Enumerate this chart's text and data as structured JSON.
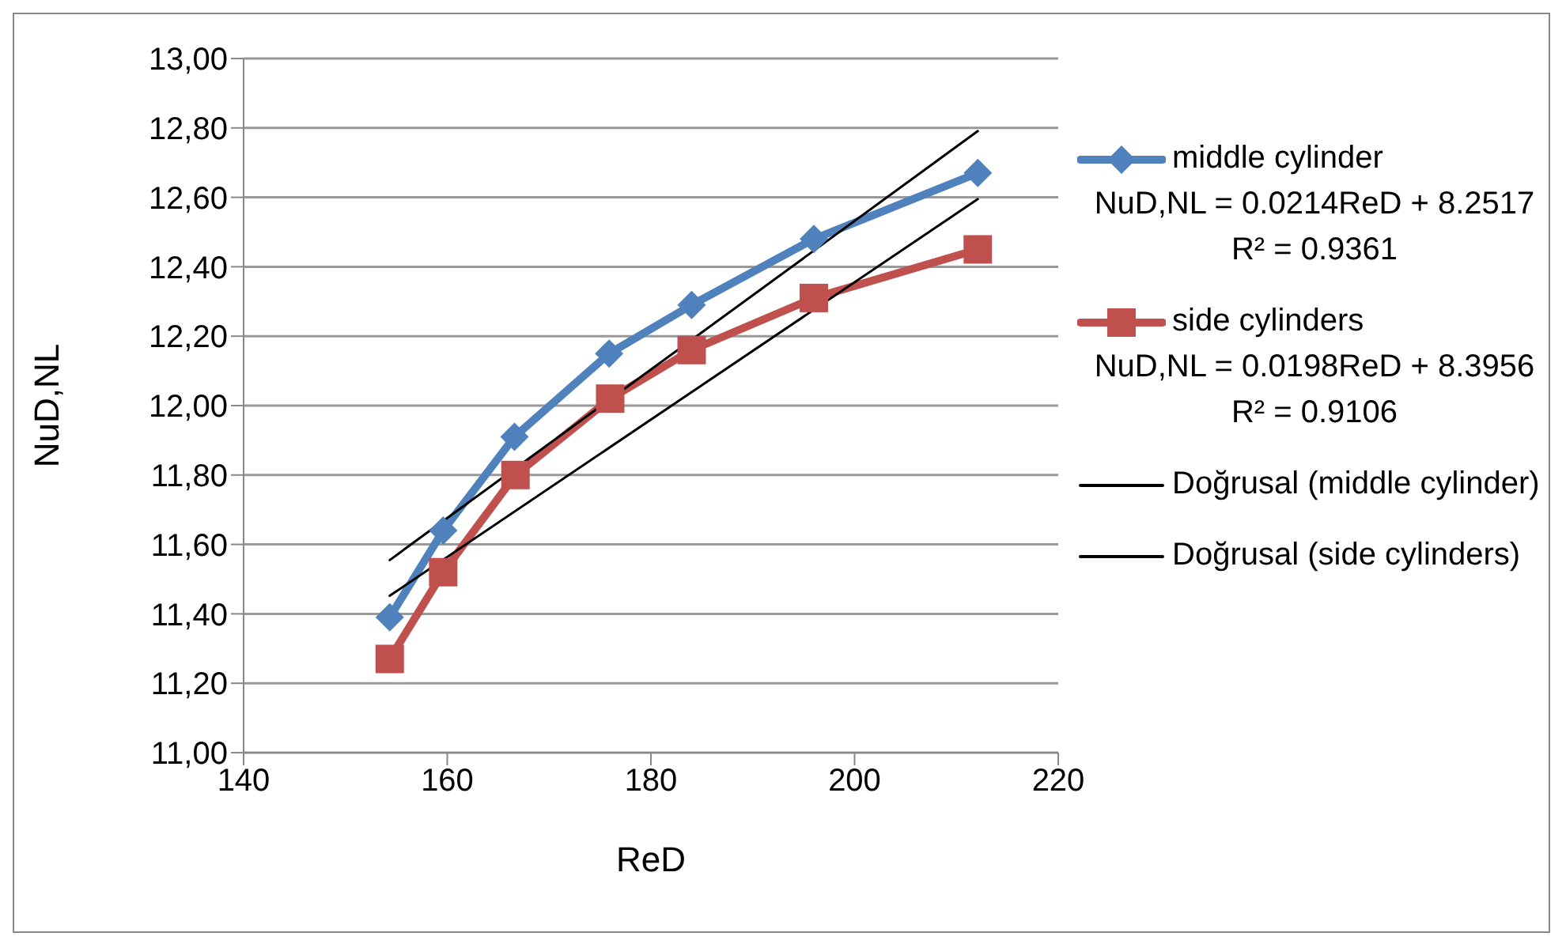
{
  "chart_data": {
    "type": "line",
    "xlabel": "ReD",
    "ylabel": "NuD,NL",
    "xlim": [
      140,
      220
    ],
    "xticks": [
      140,
      160,
      180,
      200,
      220
    ],
    "ylim": [
      11,
      13
    ],
    "yticks": [
      {
        "value": 11,
        "label": "11,00"
      },
      {
        "value": 11.2,
        "label": "11,20"
      },
      {
        "value": 11.4,
        "label": "11,40"
      },
      {
        "value": 11.6,
        "label": "11,60"
      },
      {
        "value": 11.8,
        "label": "11,80"
      },
      {
        "value": 12,
        "label": "12,00"
      },
      {
        "value": 12.2,
        "label": "12,20"
      },
      {
        "value": 12.4,
        "label": "12,40"
      },
      {
        "value": 12.6,
        "label": "12,60"
      },
      {
        "value": 12.8,
        "label": "12,80"
      },
      {
        "value": 13,
        "label": "13,00"
      }
    ],
    "grid": "y",
    "legend": "right",
    "series": [
      {
        "name": "middle cylinder",
        "color": "#4f81bd",
        "marker": "diamond",
        "x": [
          154.35,
          159.6,
          166.6,
          175.9,
          184.0,
          196.0,
          212.1
        ],
        "values": [
          11.39,
          11.64,
          11.91,
          12.15,
          12.29,
          12.48,
          12.67
        ]
      },
      {
        "name": "side cylinders",
        "color": "#c0504d",
        "marker": "square",
        "x": [
          154.35,
          159.6,
          166.7,
          176.0,
          184.0,
          196.0,
          212.1
        ],
        "values": [
          11.27,
          11.52,
          11.8,
          12.02,
          12.16,
          12.31,
          12.45
        ]
      },
      {
        "name": "Doğrusal (middle cylinder)",
        "color": "#000000",
        "marker": "none",
        "x": [
          154.35,
          212.1
        ],
        "values": [
          11.555,
          12.791
        ]
      },
      {
        "name": "Doğrusal (side cylinders)",
        "color": "#000000",
        "marker": "none",
        "x": [
          154.35,
          212.1
        ],
        "values": [
          11.452,
          12.595
        ]
      }
    ],
    "annotations": [
      "NuD,NL = 0.0214ReD + 8.2517",
      "R² = 0.9361",
      "NuD,NL = 0.0198ReD + 8.3956",
      "R² = 0.9106"
    ]
  }
}
